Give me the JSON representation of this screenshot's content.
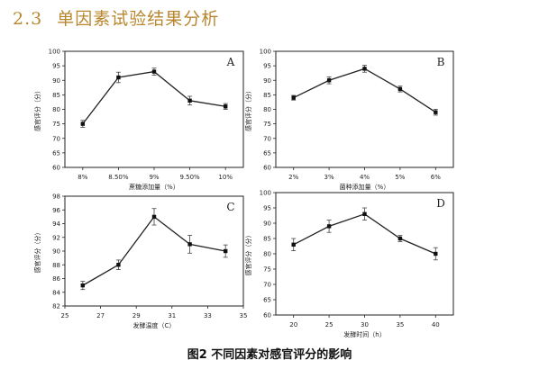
{
  "heading": {
    "number": "2.3",
    "title": "单因素试验结果分析"
  },
  "caption": "图2   不同因素对感官评分的影响",
  "chart_data": [
    {
      "type": "line",
      "panel": "A",
      "categories": [
        "8%",
        "8.50%",
        "9%",
        "9.50%",
        "10%"
      ],
      "values": [
        75,
        91,
        93,
        83,
        81
      ],
      "errors": [
        1.2,
        1.8,
        1.2,
        1.5,
        1.0
      ],
      "xlabel": "蔗糖添加量（%）",
      "ylabel": "感官评分（分）",
      "ylim": [
        60,
        100
      ],
      "yticks": [
        60,
        65,
        70,
        75,
        80,
        85,
        90,
        95,
        100
      ]
    },
    {
      "type": "line",
      "panel": "B",
      "categories": [
        "2%",
        "3%",
        "4%",
        "5%",
        "6%"
      ],
      "values": [
        84,
        90,
        94,
        87,
        79
      ],
      "errors": [
        0.8,
        1.2,
        1.2,
        1.0,
        1.0
      ],
      "xlabel": "菌种添加量（%）",
      "ylabel": "感官评分（分）",
      "ylim": [
        60,
        100
      ],
      "yticks": [
        60,
        65,
        70,
        75,
        80,
        85,
        90,
        95,
        100
      ]
    },
    {
      "type": "line",
      "panel": "C",
      "x": [
        26,
        28,
        30,
        32,
        34
      ],
      "values": [
        85,
        88,
        95,
        91,
        90
      ],
      "errors": [
        0.6,
        0.7,
        1.2,
        1.3,
        0.9
      ],
      "xlim": [
        25,
        35
      ],
      "xticks": [
        25,
        27,
        29,
        31,
        33,
        35
      ],
      "xlabel": "发酵温度（C）",
      "ylabel": "感官评分（分）",
      "ylim": [
        82,
        98
      ],
      "yticks": [
        82,
        84,
        86,
        88,
        90,
        92,
        94,
        96,
        98
      ]
    },
    {
      "type": "line",
      "panel": "D",
      "categories": [
        "20",
        "25",
        "30",
        "35",
        "40"
      ],
      "values": [
        83,
        89,
        93,
        85,
        80
      ],
      "errors": [
        2.0,
        2.0,
        2.0,
        1.0,
        2.0
      ],
      "xlabel": "发酵时间（h）",
      "ylabel": "感官评分（分）",
      "ylim": [
        60,
        100
      ],
      "yticks": [
        60,
        65,
        70,
        75,
        80,
        85,
        90,
        95,
        100
      ]
    }
  ]
}
